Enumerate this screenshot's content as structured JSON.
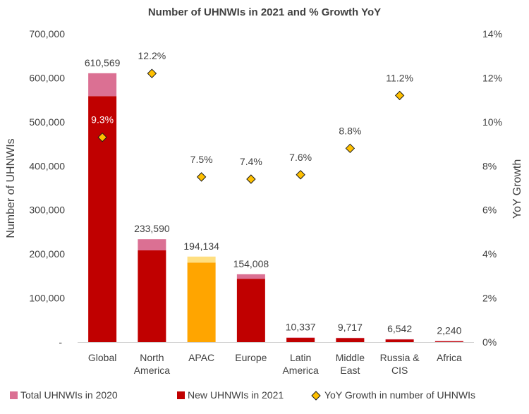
{
  "chart_data": {
    "type": "bar",
    "title": "Number of UHNWIs in 2021 and % Growth YoY",
    "ylabel": "Number of UHNWIs",
    "y2label": "YoY Growth",
    "ylim": [
      0,
      700000
    ],
    "y2lim": [
      0,
      14
    ],
    "yticks": [
      "-",
      "100,000",
      "200,000",
      "300,000",
      "400,000",
      "500,000",
      "600,000",
      "700,000"
    ],
    "y2ticks": [
      "0%",
      "2%",
      "4%",
      "6%",
      "8%",
      "10%",
      "12%",
      "14%"
    ],
    "categories": [
      [
        "Global"
      ],
      [
        "North",
        "America"
      ],
      [
        "APAC"
      ],
      [
        "Europe"
      ],
      [
        "Latin",
        "America"
      ],
      [
        "Middle",
        "East"
      ],
      [
        "Russia &",
        "CIS"
      ],
      [
        "Africa"
      ]
    ],
    "totals_2021": [
      610569,
      233590,
      194134,
      154008,
      10337,
      9717,
      6542,
      2240
    ],
    "total_labels": [
      "610,569",
      "233,590",
      "194,134",
      "154,008",
      "10,337",
      "9,717",
      "6,542",
      "2,240"
    ],
    "series": [
      {
        "name": "Total UHNWIs in 2020",
        "values": [
          558600,
          208300,
          180600,
          143400,
          9600,
          8900,
          5900,
          2100
        ]
      },
      {
        "name": "New UHNWIs in 2021",
        "values": [
          51969,
          25290,
          13534,
          10608,
          737,
          817,
          642,
          140
        ]
      },
      {
        "name": "YoY Growth in number of UHNWIs",
        "axis": "right",
        "values": [
          9.3,
          12.2,
          7.5,
          7.4,
          7.6,
          8.8,
          11.2,
          null
        ]
      }
    ],
    "growth_labels": [
      "9.3%",
      "12.2%",
      "7.5%",
      "7.4%",
      "7.6%",
      "8.8%",
      "11.2%",
      ""
    ],
    "legend": [
      "Total UHNWIs in 2020",
      "New UHNWIs in 2021",
      "YoY Growth in number of UHNWIs"
    ],
    "legend_position": "bottom",
    "grid": false,
    "colors": {
      "base": "#c00000",
      "top": "#db7093",
      "apac_base": "#ffa500",
      "apac_top": "#ffdf80",
      "marker_fill": "#ffc000",
      "marker_stroke": "#1a1a1a",
      "text": "#404040",
      "axis": "#d0d0d0"
    }
  }
}
